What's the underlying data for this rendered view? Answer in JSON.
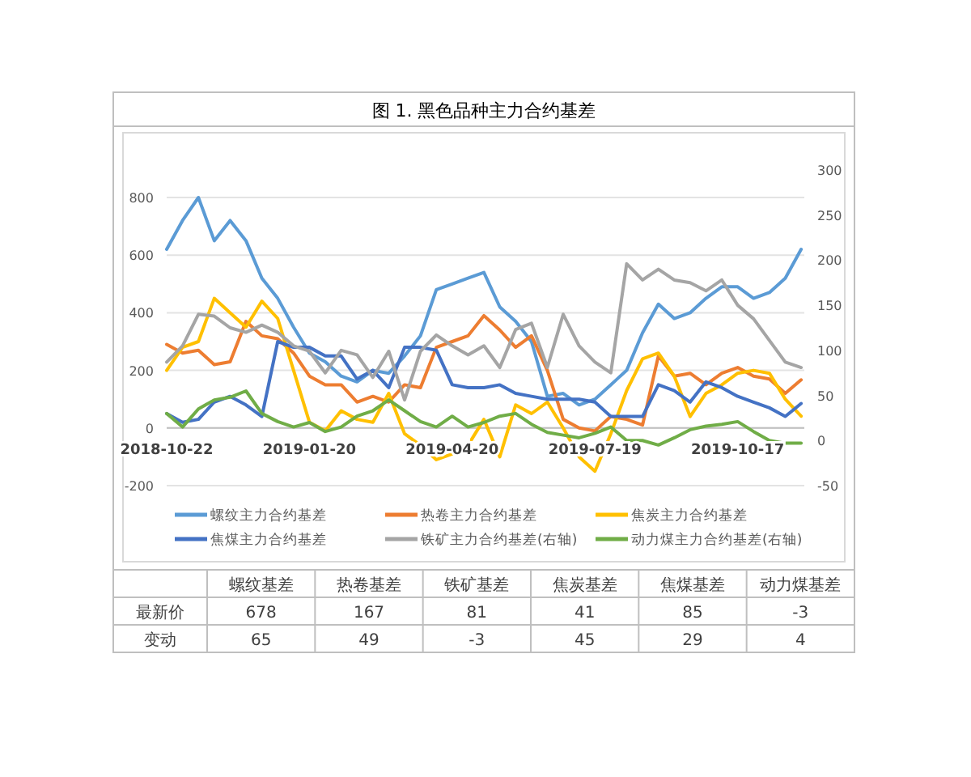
{
  "chart_data": {
    "type": "line",
    "title": "图 1. 黑色品种主力合约基差",
    "x": [
      "2018-10-22",
      "2018-11-01",
      "2018-11-11",
      "2018-11-21",
      "2018-12-01",
      "2018-12-11",
      "2018-12-21",
      "2018-12-31",
      "2019-01-10",
      "2019-01-20",
      "2019-01-30",
      "2019-02-09",
      "2019-02-19",
      "2019-03-01",
      "2019-03-11",
      "2019-03-21",
      "2019-03-31",
      "2019-04-10",
      "2019-04-20",
      "2019-04-30",
      "2019-05-10",
      "2019-05-20",
      "2019-05-30",
      "2019-06-09",
      "2019-06-19",
      "2019-06-29",
      "2019-07-09",
      "2019-07-19",
      "2019-07-29",
      "2019-08-08",
      "2019-08-18",
      "2019-08-28",
      "2019-09-07",
      "2019-09-17",
      "2019-09-27",
      "2019-10-07",
      "2019-10-17",
      "2019-10-27",
      "2019-11-06",
      "2019-11-16",
      "2019-11-26"
    ],
    "xlim": [
      "2018-10-22",
      "2019-11-28"
    ],
    "xticks": [
      "2018-10-22",
      "2019-01-20",
      "2019-04-20",
      "2019-07-19",
      "2019-10-17"
    ],
    "ylim": [
      -200,
      800
    ],
    "yticks": [
      -200,
      0,
      200,
      400,
      600,
      800
    ],
    "y2lim": [
      -50,
      300
    ],
    "y2ticks": [
      -50,
      0,
      50,
      100,
      150,
      200,
      250,
      300
    ],
    "grid": "y",
    "legend": "bottom",
    "line_style": "solid",
    "marker": "none",
    "series": [
      {
        "name": "螺纹主力合约基差",
        "color": "#5b9bd5",
        "values": [
          620,
          720,
          800,
          650,
          720,
          650,
          520,
          450,
          350,
          260,
          230,
          180,
          160,
          200,
          190,
          250,
          320,
          480,
          500,
          520,
          540,
          420,
          370,
          300,
          110,
          120,
          80,
          100,
          150,
          200,
          330,
          430,
          380,
          400,
          450,
          490,
          490,
          450,
          470,
          520,
          620
        ]
      },
      {
        "name": "热卷主力合约基差",
        "color": "#ed7d31",
        "values": [
          290,
          260,
          270,
          220,
          230,
          370,
          320,
          310,
          260,
          180,
          150,
          150,
          90,
          110,
          90,
          150,
          140,
          280,
          300,
          320,
          390,
          340,
          280,
          320,
          200,
          30,
          0,
          -10,
          40,
          30,
          10,
          250,
          180,
          190,
          150,
          190,
          210,
          180,
          170,
          120,
          167
        ]
      },
      {
        "name": "焦炭主力合约基差",
        "color": "#ffc000",
        "values": [
          200,
          280,
          300,
          450,
          400,
          350,
          440,
          380,
          200,
          20,
          -10,
          60,
          30,
          20,
          120,
          -20,
          -60,
          -110,
          -90,
          -60,
          30,
          -100,
          80,
          50,
          90,
          0,
          -100,
          -150,
          -20,
          130,
          240,
          260,
          180,
          40,
          120,
          150,
          190,
          200,
          190,
          100,
          41
        ]
      },
      {
        "name": "焦煤主力合约基差",
        "color": "#4472c4",
        "values": [
          50,
          20,
          30,
          90,
          110,
          80,
          40,
          300,
          280,
          280,
          250,
          250,
          170,
          200,
          140,
          280,
          280,
          270,
          150,
          140,
          140,
          150,
          120,
          110,
          100,
          100,
          100,
          90,
          40,
          40,
          40,
          150,
          130,
          90,
          160,
          140,
          110,
          90,
          70,
          40,
          85
        ]
      },
      {
        "name": "铁矿主力合约基差(右轴)",
        "color": "#a5a5a5",
        "axis": "y2",
        "values": [
          87,
          105,
          140,
          138,
          125,
          120,
          128,
          120,
          105,
          99,
          75,
          100,
          95,
          70,
          99,
          45,
          99,
          117,
          105,
          95,
          105,
          81,
          123,
          130,
          81,
          140,
          105,
          87,
          75,
          196,
          178,
          190,
          178,
          175,
          166,
          178,
          150,
          135,
          111,
          87,
          81
        ]
      },
      {
        "name": "动力煤主力合约基差(右轴)",
        "color": "#70ad47",
        "axis": "y2",
        "values": [
          30,
          15,
          35,
          45,
          48,
          55,
          30,
          21,
          15,
          20,
          10,
          15,
          27,
          33,
          45,
          33,
          21,
          15,
          27,
          15,
          20,
          27,
          30,
          18,
          9,
          6,
          3,
          8,
          15,
          0,
          0,
          -5,
          3,
          12,
          16,
          18,
          21,
          10,
          0,
          -3,
          -3
        ]
      }
    ],
    "annotations": [
      "螺纹基差",
      "热卷基差",
      "铁矿基差",
      "焦炭基差",
      "焦煤基差",
      "动力煤基差",
      "最新价",
      "678",
      "167",
      "81",
      "41",
      "85",
      "-3",
      "变动",
      "65",
      "49",
      "-3",
      "45",
      "29",
      "4"
    ]
  }
}
